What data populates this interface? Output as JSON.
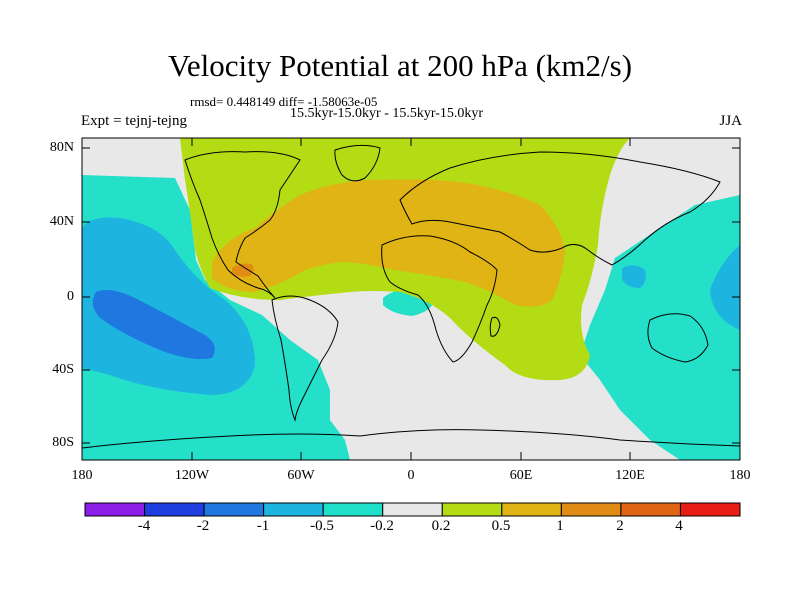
{
  "title": "Velocity Potential at 200 hPa (km2/s)",
  "stats_line": "rmsd= 0.448149 diff= -1.58063e-05",
  "subtitle": "15.5kyr-15.0kyr - 15.5kyr-15.0kyr",
  "experiment": "Expt = tejnj-tejng",
  "season": "JJA",
  "latitude_labels": [
    "80N",
    "40N",
    "0",
    "40S",
    "80S"
  ],
  "longitude_labels": [
    "180",
    "120W",
    "60W",
    "0",
    "60E",
    "120E",
    "180"
  ],
  "colorbar": {
    "labels": [
      "-4",
      "-2",
      "-1",
      "-0.5",
      "-0.2",
      "0.2",
      "0.5",
      "1",
      "2",
      "4"
    ],
    "colors": [
      "#8a1ee8",
      "#1e3ee0",
      "#1e78e0",
      "#1eb4e0",
      "#1ee0c8",
      "#e8e8e8",
      "#b4dc14",
      "#e0b414",
      "#e08c14",
      "#e06414",
      "#e81e14"
    ]
  },
  "map_colors": {
    "background": "#e8e8e8",
    "teal": "#24e0c8",
    "light_blue": "#1eb4e0",
    "mid_blue": "#1e78e0",
    "green": "#b4dc14",
    "gold": "#e0b414",
    "orange": "#e08c14"
  }
}
